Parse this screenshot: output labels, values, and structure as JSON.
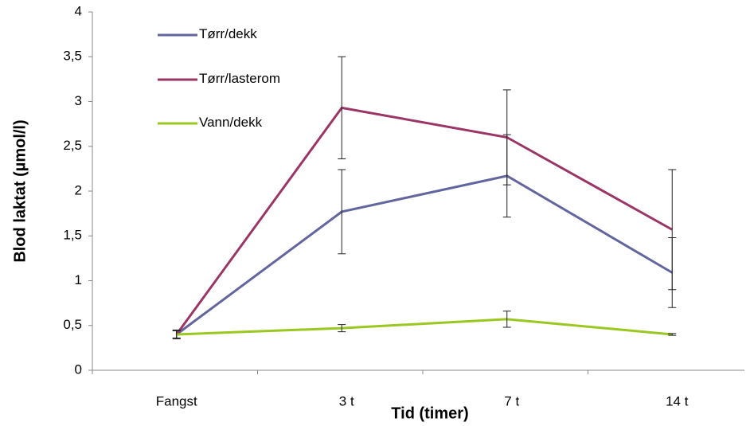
{
  "chart_data": {
    "type": "line",
    "x_label": "Tid (timer)",
    "y_label": "Blod laktat (µmol/l)",
    "categories": [
      "Fangst",
      "3 t",
      "7 t",
      "14 t"
    ],
    "series": [
      {
        "name": "Tørr/dekk",
        "color": "#63659f",
        "values": [
          0.4,
          1.77,
          2.17,
          1.09
        ],
        "errors": [
          0.04,
          0.47,
          0.46,
          0.39
        ]
      },
      {
        "name": "Tørr/lasterom",
        "color": "#9b3566",
        "values": [
          0.4,
          2.93,
          2.6,
          1.57
        ],
        "errors": [
          0.04,
          0.57,
          0.53,
          0.67
        ]
      },
      {
        "name": "Vann/dekk",
        "color": "#9bc820",
        "values": [
          0.4,
          0.47,
          0.57,
          0.4
        ],
        "errors": [
          0.05,
          0.04,
          0.09,
          0.01
        ]
      }
    ],
    "ylim": [
      0,
      4
    ],
    "yticks": [
      0,
      {
        "value": 0.5,
        "label": "0,5"
      },
      1,
      {
        "value": 1.5,
        "label": "1,5"
      },
      2,
      {
        "value": 2.5,
        "label": "2,5"
      },
      3,
      {
        "value": 3.5,
        "label": "3,5"
      },
      4
    ]
  }
}
